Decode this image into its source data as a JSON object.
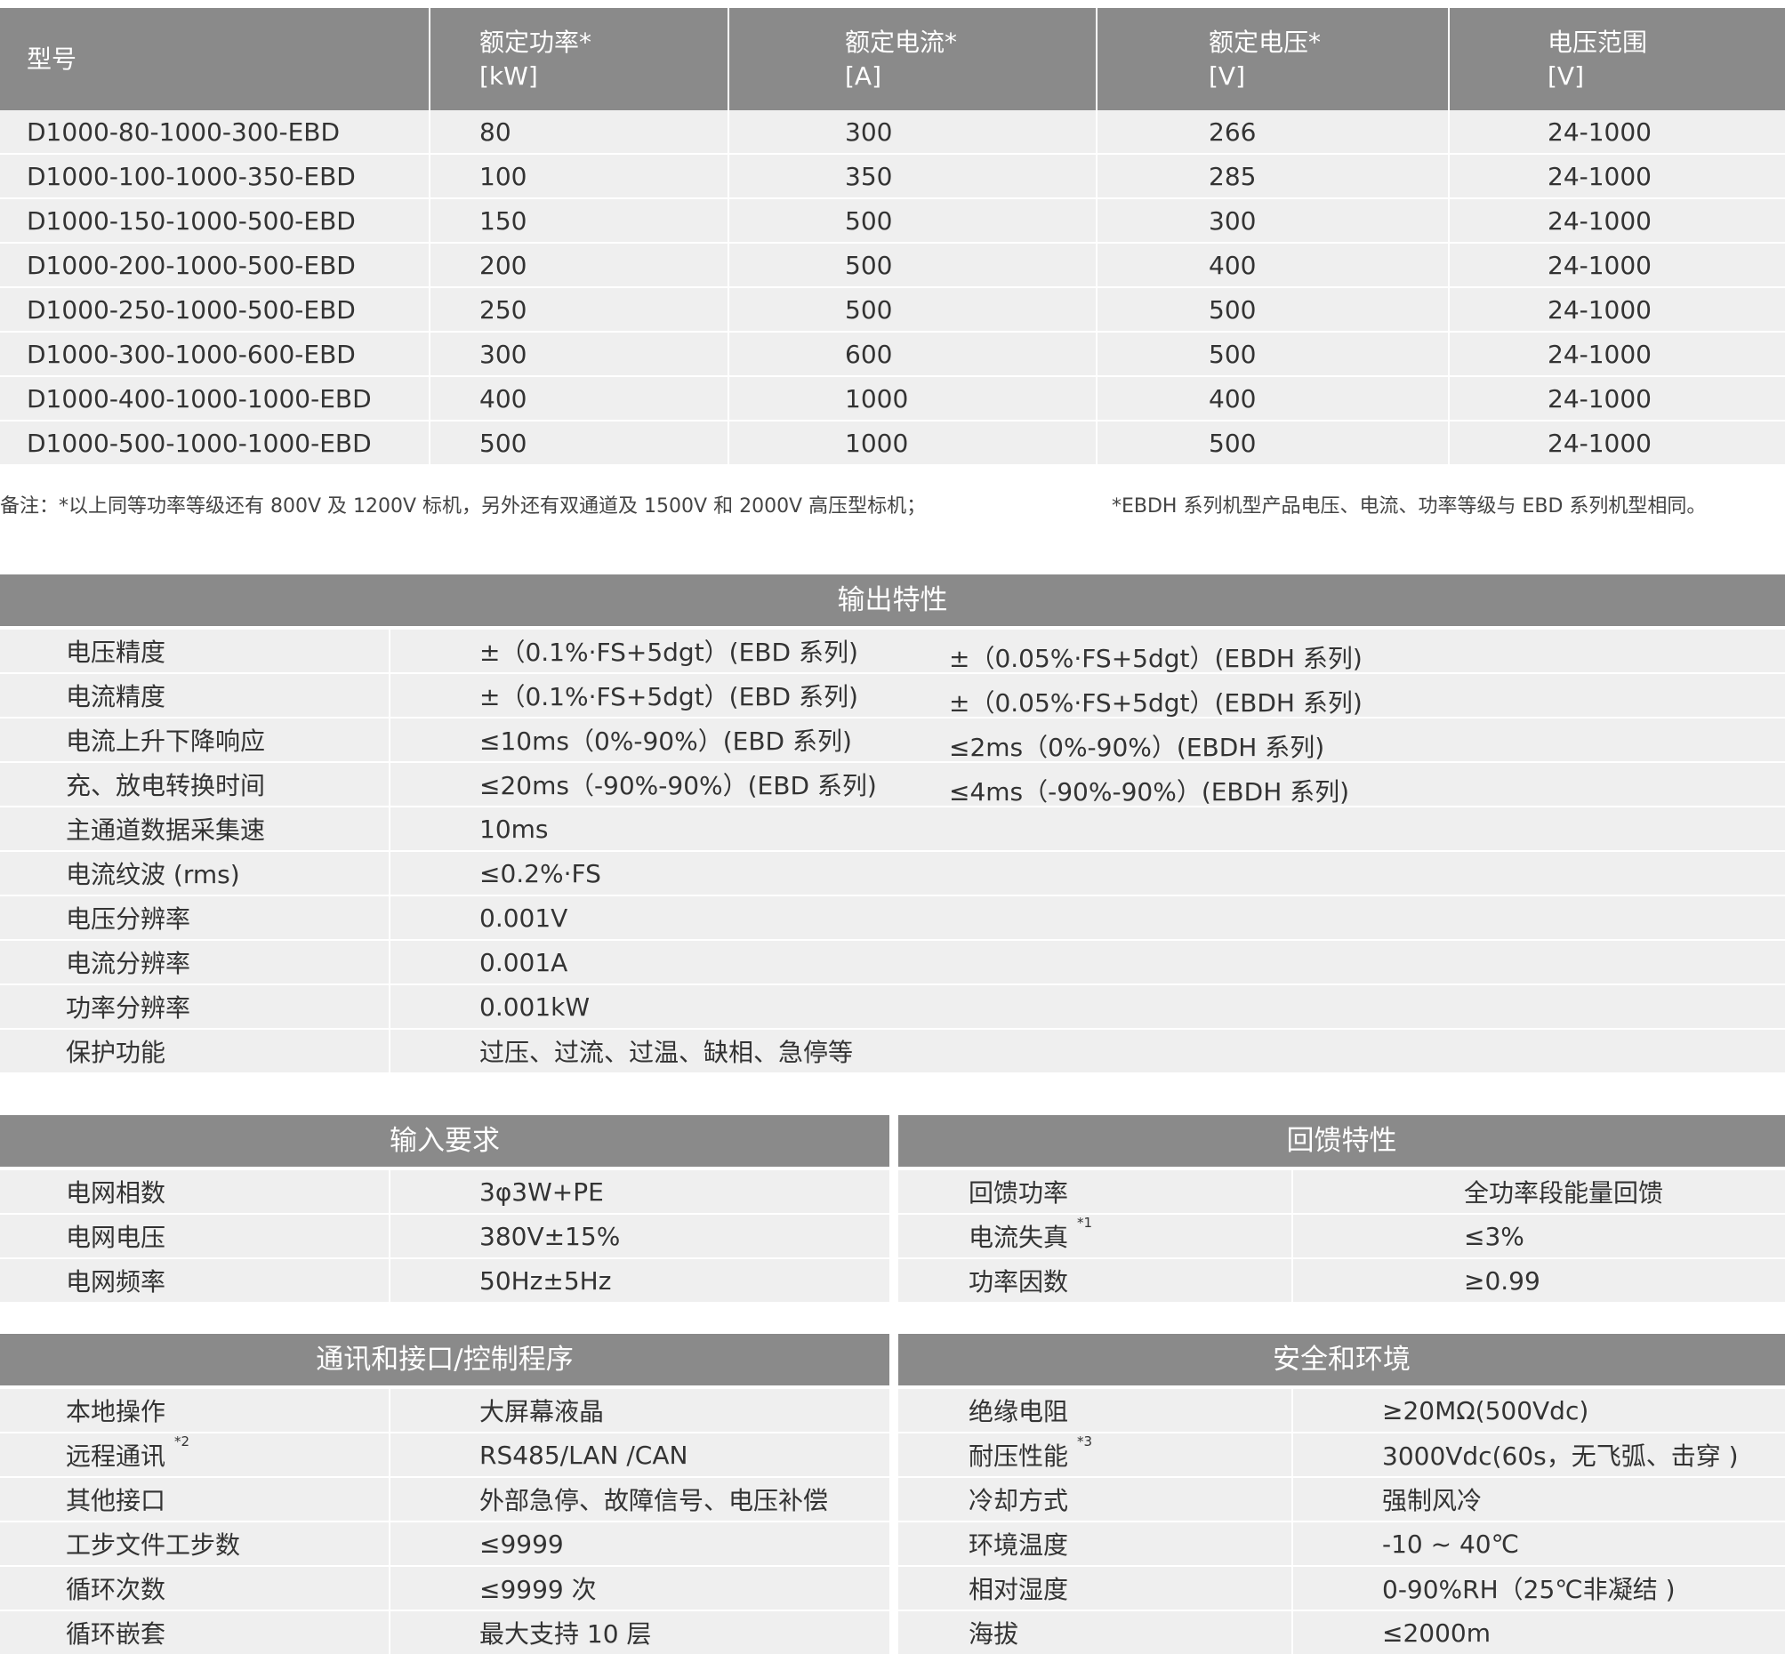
{
  "models_table": {
    "headers": [
      {
        "line1": "型号",
        "line2": ""
      },
      {
        "line1": "额定功率*",
        "line2": "[kW]"
      },
      {
        "line1": "额定电流*",
        "line2": "[A]"
      },
      {
        "line1": "额定电压*",
        "line2": "[V]"
      },
      {
        "line1": "电压范围",
        "line2": "[V]"
      }
    ],
    "rows": [
      [
        "D1000-80-1000-300-EBD",
        "80",
        "300",
        "266",
        "24-1000"
      ],
      [
        "D1000-100-1000-350-EBD",
        "100",
        "350",
        "285",
        "24-1000"
      ],
      [
        "D1000-150-1000-500-EBD",
        "150",
        "500",
        "300",
        "24-1000"
      ],
      [
        "D1000-200-1000-500-EBD",
        "200",
        "500",
        "400",
        "24-1000"
      ],
      [
        "D1000-250-1000-500-EBD",
        "250",
        "500",
        "500",
        "24-1000"
      ],
      [
        "D1000-300-1000-600-EBD",
        "300",
        "600",
        "500",
        "24-1000"
      ],
      [
        "D1000-400-1000-1000-EBD",
        "400",
        "1000",
        "400",
        "24-1000"
      ],
      [
        "D1000-500-1000-1000-EBD",
        "500",
        "1000",
        "500",
        "24-1000"
      ]
    ]
  },
  "notes": {
    "note1": "备注：*以上同等功率等级还有 800V 及 1200V 标机，另外还有双通道及 1500V 和 2000V 高压型标机；",
    "note2": "*EBDH 系列机型产品电压、电流、功率等级与 EBD 系列机型相同。"
  },
  "output": {
    "title": "输出特性",
    "rows": [
      {
        "label": "电压精度",
        "v1": "±（0.1%·FS+5dgt）(EBD 系列)",
        "v2": "±（0.05%·FS+5dgt）(EBDH 系列)"
      },
      {
        "label": "电流精度",
        "v1": "±（0.1%·FS+5dgt）(EBD 系列)",
        "v2": "±（0.05%·FS+5dgt）(EBDH 系列)"
      },
      {
        "label": "电流上升下降响应",
        "v1": "≤10ms（0%-90%）(EBD 系列)",
        "v2": "≤2ms（0%-90%）(EBDH 系列)"
      },
      {
        "label": "充、放电转换时间",
        "v1": "≤20ms（-90%-90%）(EBD 系列)",
        "v2": "≤4ms（-90%-90%）(EBDH 系列)"
      },
      {
        "label": "主通道数据采集速",
        "v1": "10ms",
        "v2": ""
      },
      {
        "label": "电流纹波 (rms)",
        "v1": "≤0.2%·FS",
        "v2": ""
      },
      {
        "label": "电压分辨率",
        "v1": "0.001V",
        "v2": ""
      },
      {
        "label": "电流分辨率",
        "v1": "0.001A",
        "v2": ""
      },
      {
        "label": "功率分辨率",
        "v1": "0.001kW",
        "v2": ""
      },
      {
        "label": "保护功能",
        "v1": "过压、过流、过温、缺相、急停等",
        "v2": ""
      }
    ]
  },
  "input": {
    "title": "输入要求",
    "rows": [
      {
        "label": "电网相数",
        "sup": "",
        "value": "3φ3W+PE"
      },
      {
        "label": "电网电压",
        "sup": "",
        "value": "380V±15%"
      },
      {
        "label": "电网频率",
        "sup": "",
        "value": "50Hz±5Hz"
      }
    ]
  },
  "feedback": {
    "title": "回馈特性",
    "rows": [
      {
        "label": "回馈功率",
        "sup": "",
        "value": "全功率段能量回馈"
      },
      {
        "label": "电流失真",
        "sup": "*1",
        "value": "≤3%"
      },
      {
        "label": "功率因数",
        "sup": "",
        "value": "≥0.99"
      }
    ]
  },
  "comm": {
    "title": "通讯和接口/控制程序",
    "rows": [
      {
        "label": "本地操作",
        "sup": "",
        "value": "大屏幕液晶"
      },
      {
        "label": "远程通讯",
        "sup": "*2",
        "value": "RS485/LAN /CAN"
      },
      {
        "label": "其他接口",
        "sup": "",
        "value": "外部急停、故障信号、电压补偿"
      },
      {
        "label": "工步文件工步数",
        "sup": "",
        "value": "≤9999"
      },
      {
        "label": "循环次数",
        "sup": "",
        "value": "≤9999 次"
      },
      {
        "label": "循环嵌套",
        "sup": "",
        "value": "最大支持 10 层"
      }
    ]
  },
  "safety": {
    "title": "安全和环境",
    "rows": [
      {
        "label": "绝缘电阻",
        "sup": "",
        "value": "≥20MΩ(500Vdc)"
      },
      {
        "label": "耐压性能",
        "sup": "*3",
        "value": "3000Vdc(60s，无飞弧、击穿 )"
      },
      {
        "label": "冷却方式",
        "sup": "",
        "value": "强制风冷"
      },
      {
        "label": "环境温度",
        "sup": "",
        "value": "-10 ~ 40℃"
      },
      {
        "label": "相对湿度",
        "sup": "",
        "value": "0-90%RH（25℃非凝结 )"
      },
      {
        "label": "海拔",
        "sup": "",
        "value": "≤2000m"
      }
    ]
  }
}
